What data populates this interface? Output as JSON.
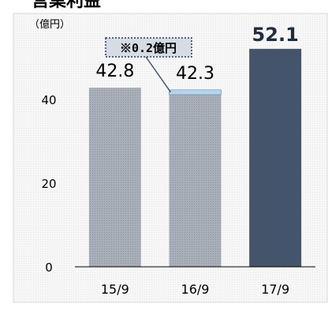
{
  "header": {
    "title": "営業利益"
  },
  "chart_data": {
    "type": "bar",
    "unit_label": "（億円）",
    "categories": [
      "15/9",
      "16/9",
      "17/9"
    ],
    "values": [
      42.8,
      42.3,
      52.1
    ],
    "data_labels": [
      "42.8",
      "42.3",
      "52.1"
    ],
    "highlight_index": 2,
    "ylim": [
      0,
      60
    ],
    "yticks": [
      0,
      20,
      40
    ],
    "annotation": {
      "text": "※0.2億円",
      "category_index": 1,
      "value": 0.2
    },
    "grid": false,
    "colors": {
      "bar": "#a6acb6",
      "bar_highlight": "#44546a",
      "annotation_segment": "#b7d5ea",
      "plot_background": "#f2f2f2",
      "callout_background": "#d6dce4",
      "callout_border": "#1f3864"
    }
  }
}
